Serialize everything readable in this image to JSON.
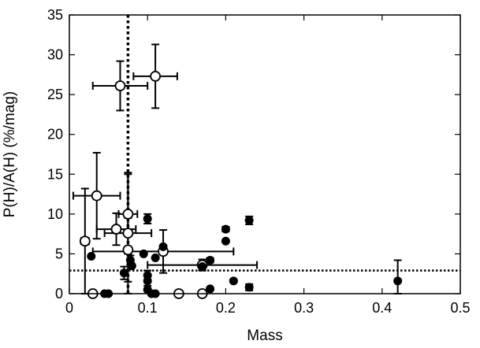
{
  "chart_data": {
    "type": "scatter",
    "title": "",
    "xlabel": "Mass",
    "ylabel": "P(H)/A(H) (%/mag)",
    "xlim": [
      0,
      0.5
    ],
    "ylim": [
      0,
      35
    ],
    "xticks": [
      0,
      0.1,
      0.2,
      0.3,
      0.4,
      0.5
    ],
    "xtick_labels": [
      "0",
      "0.1",
      "0.2",
      "0.3",
      "0.4",
      "0.5"
    ],
    "yticks": [
      0,
      5,
      10,
      15,
      20,
      25,
      30,
      35
    ],
    "ytick_labels": [
      "0",
      "5",
      "10",
      "15",
      "20",
      "25",
      "30",
      "35"
    ],
    "grid": false,
    "legend": "none",
    "reference_lines": [
      {
        "orientation": "vertical",
        "x": 0.075,
        "style": "dotted"
      },
      {
        "orientation": "horizontal",
        "y": 2.9,
        "style": "dotted"
      }
    ],
    "series": [
      {
        "marker": "open-circle",
        "points": [
          {
            "x": 0.065,
            "y": 26.1,
            "xerr": 0.035,
            "yerr": 3.1
          },
          {
            "x": 0.11,
            "y": 27.3,
            "xerr": 0.028,
            "yerr": 4.0
          },
          {
            "x": 0.035,
            "y": 12.3,
            "xerr": 0.03,
            "yerr": 5.4
          },
          {
            "x": 0.02,
            "y": 6.6,
            "xerr": 0.005,
            "yerr": 6.6
          },
          {
            "x": 0.075,
            "y": 10.0,
            "xerr": 0.012,
            "yerr": 5.0
          },
          {
            "x": 0.06,
            "y": 8.1,
            "xerr": 0.025,
            "yerr": 2.0
          },
          {
            "x": 0.075,
            "y": 7.6,
            "xerr": 0.03,
            "yerr": 7.6
          },
          {
            "x": 0.075,
            "y": 5.5,
            "xerr": 0.003,
            "yerr": 4.0
          },
          {
            "x": 0.12,
            "y": 5.3,
            "xerr": 0.09,
            "yerr": 2.7
          },
          {
            "x": 0.17,
            "y": 3.6,
            "xerr": 0.07,
            "yerr": 0.7
          },
          {
            "x": 0.03,
            "y": 0.0,
            "xerr": 0.0,
            "yerr": 0.0
          },
          {
            "x": 0.14,
            "y": 0.0,
            "xerr": 0.0,
            "yerr": 0.0
          },
          {
            "x": 0.17,
            "y": 0.0,
            "xerr": 0.0,
            "yerr": 0.0
          }
        ]
      },
      {
        "marker": "filled-circle",
        "points": [
          {
            "x": 0.028,
            "y": 4.7,
            "yerr": 0.0
          },
          {
            "x": 0.045,
            "y": 0.0,
            "yerr": 0.0
          },
          {
            "x": 0.05,
            "y": 0.0,
            "yerr": 0.0
          },
          {
            "x": 0.07,
            "y": 2.6,
            "yerr": 0.8
          },
          {
            "x": 0.078,
            "y": 4.2,
            "yerr": 0.6
          },
          {
            "x": 0.08,
            "y": 3.5,
            "yerr": 0.0
          },
          {
            "x": 0.095,
            "y": 5.0,
            "yerr": 0.0
          },
          {
            "x": 0.1,
            "y": 9.4,
            "yerr": 0.6
          },
          {
            "x": 0.1,
            "y": 2.3,
            "yerr": 0.6
          },
          {
            "x": 0.1,
            "y": 1.6,
            "yerr": 0.6
          },
          {
            "x": 0.1,
            "y": 0.5,
            "yerr": 0.0
          },
          {
            "x": 0.105,
            "y": 0.0,
            "yerr": 0.0
          },
          {
            "x": 0.11,
            "y": 4.5,
            "yerr": 0.0
          },
          {
            "x": 0.11,
            "y": 0.0,
            "yerr": 0.0
          },
          {
            "x": 0.12,
            "y": 5.9,
            "yerr": 0.0
          },
          {
            "x": 0.17,
            "y": 3.4,
            "yerr": 0.3
          },
          {
            "x": 0.18,
            "y": 4.2,
            "yerr": 0.3
          },
          {
            "x": 0.18,
            "y": 0.6,
            "yerr": 0.0
          },
          {
            "x": 0.2,
            "y": 8.1,
            "yerr": 0.3
          },
          {
            "x": 0.2,
            "y": 6.6,
            "yerr": 0.0
          },
          {
            "x": 0.21,
            "y": 1.6,
            "yerr": 0.2
          },
          {
            "x": 0.23,
            "y": 9.2,
            "yerr": 0.5
          },
          {
            "x": 0.23,
            "y": 0.8,
            "yerr": 0.4
          },
          {
            "x": 0.42,
            "y": 1.6,
            "yerr": 2.6
          }
        ]
      }
    ]
  }
}
